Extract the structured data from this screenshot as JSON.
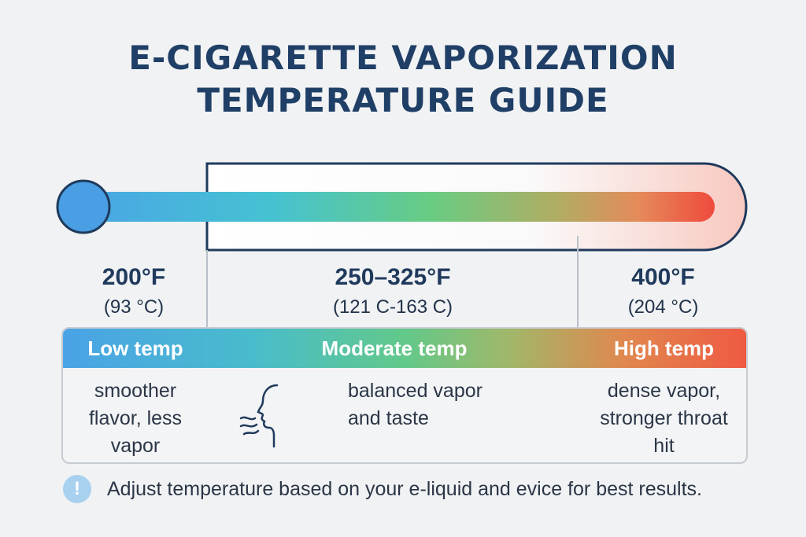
{
  "title": {
    "line1": "E-CIGARETTE VAPORIZATION",
    "line2": "TEMPERATURE GUIDE"
  },
  "temps": [
    {
      "f": "200°F",
      "c": "(93 °C)"
    },
    {
      "f": "250–325°F",
      "c": "(121 C-163 C)"
    },
    {
      "f": "400°F",
      "c": "(204 °C)"
    }
  ],
  "levels": [
    {
      "label": "Low temp",
      "description": [
        "smoother",
        "flavor, less",
        "vapor"
      ]
    },
    {
      "label": "Moderate temp",
      "description": [
        "balanced vapor",
        "and taste"
      ]
    },
    {
      "label": "High temp",
      "description": [
        "dense vapor,",
        "stronger throat",
        "hit"
      ]
    }
  ],
  "icons": {
    "face": "face-inhaling-icon",
    "info": "info-icon"
  },
  "info_glyph": "!",
  "note": "Adjust temperature based on your e-liquid and evice for best results.",
  "colors": {
    "cool": "#4aa3e6",
    "mid": "#62c98a",
    "hot": "#ef5a42",
    "title": "#1f3f66"
  }
}
